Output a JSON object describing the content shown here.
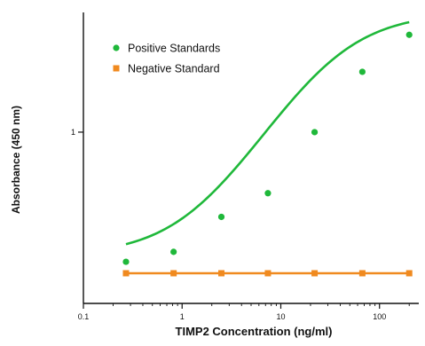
{
  "chart_data": {
    "type": "scatter",
    "title": "",
    "xlabel": "TIMP2 Concentration (ng/ml)",
    "ylabel": "Absorbance (450 nm)",
    "xscale": "log",
    "yscale": "log",
    "xlim": [
      0.1,
      250
    ],
    "ylim": [
      0.1,
      5
    ],
    "x_ticks": [
      {
        "value": 0.1,
        "label": "0.1"
      },
      {
        "value": 1,
        "label": "1"
      },
      {
        "value": 10,
        "label": "10"
      },
      {
        "value": 100,
        "label": "100"
      }
    ],
    "y_ticks": [
      {
        "value": 1,
        "label": "1"
      }
    ],
    "grid": false,
    "legend": "top-left",
    "series": [
      {
        "name": "Positive Standards",
        "color": "#1fb83a",
        "marker": "circle",
        "fit_curve": true,
        "points": [
          {
            "x": 0.27,
            "y": 0.175
          },
          {
            "x": 0.82,
            "y": 0.2
          },
          {
            "x": 2.5,
            "y": 0.32
          },
          {
            "x": 7.4,
            "y": 0.44
          },
          {
            "x": 22,
            "y": 1.0
          },
          {
            "x": 67,
            "y": 2.25
          },
          {
            "x": 200,
            "y": 3.7
          }
        ]
      },
      {
        "name": "Negative Standard",
        "color": "#f08a1f",
        "marker": "square",
        "fit_curve": false,
        "connect": true,
        "points": [
          {
            "x": 0.27,
            "y": 0.15
          },
          {
            "x": 0.82,
            "y": 0.15
          },
          {
            "x": 2.5,
            "y": 0.15
          },
          {
            "x": 7.4,
            "y": 0.15
          },
          {
            "x": 22,
            "y": 0.15
          },
          {
            "x": 67,
            "y": 0.15
          },
          {
            "x": 200,
            "y": 0.15
          }
        ]
      }
    ]
  }
}
